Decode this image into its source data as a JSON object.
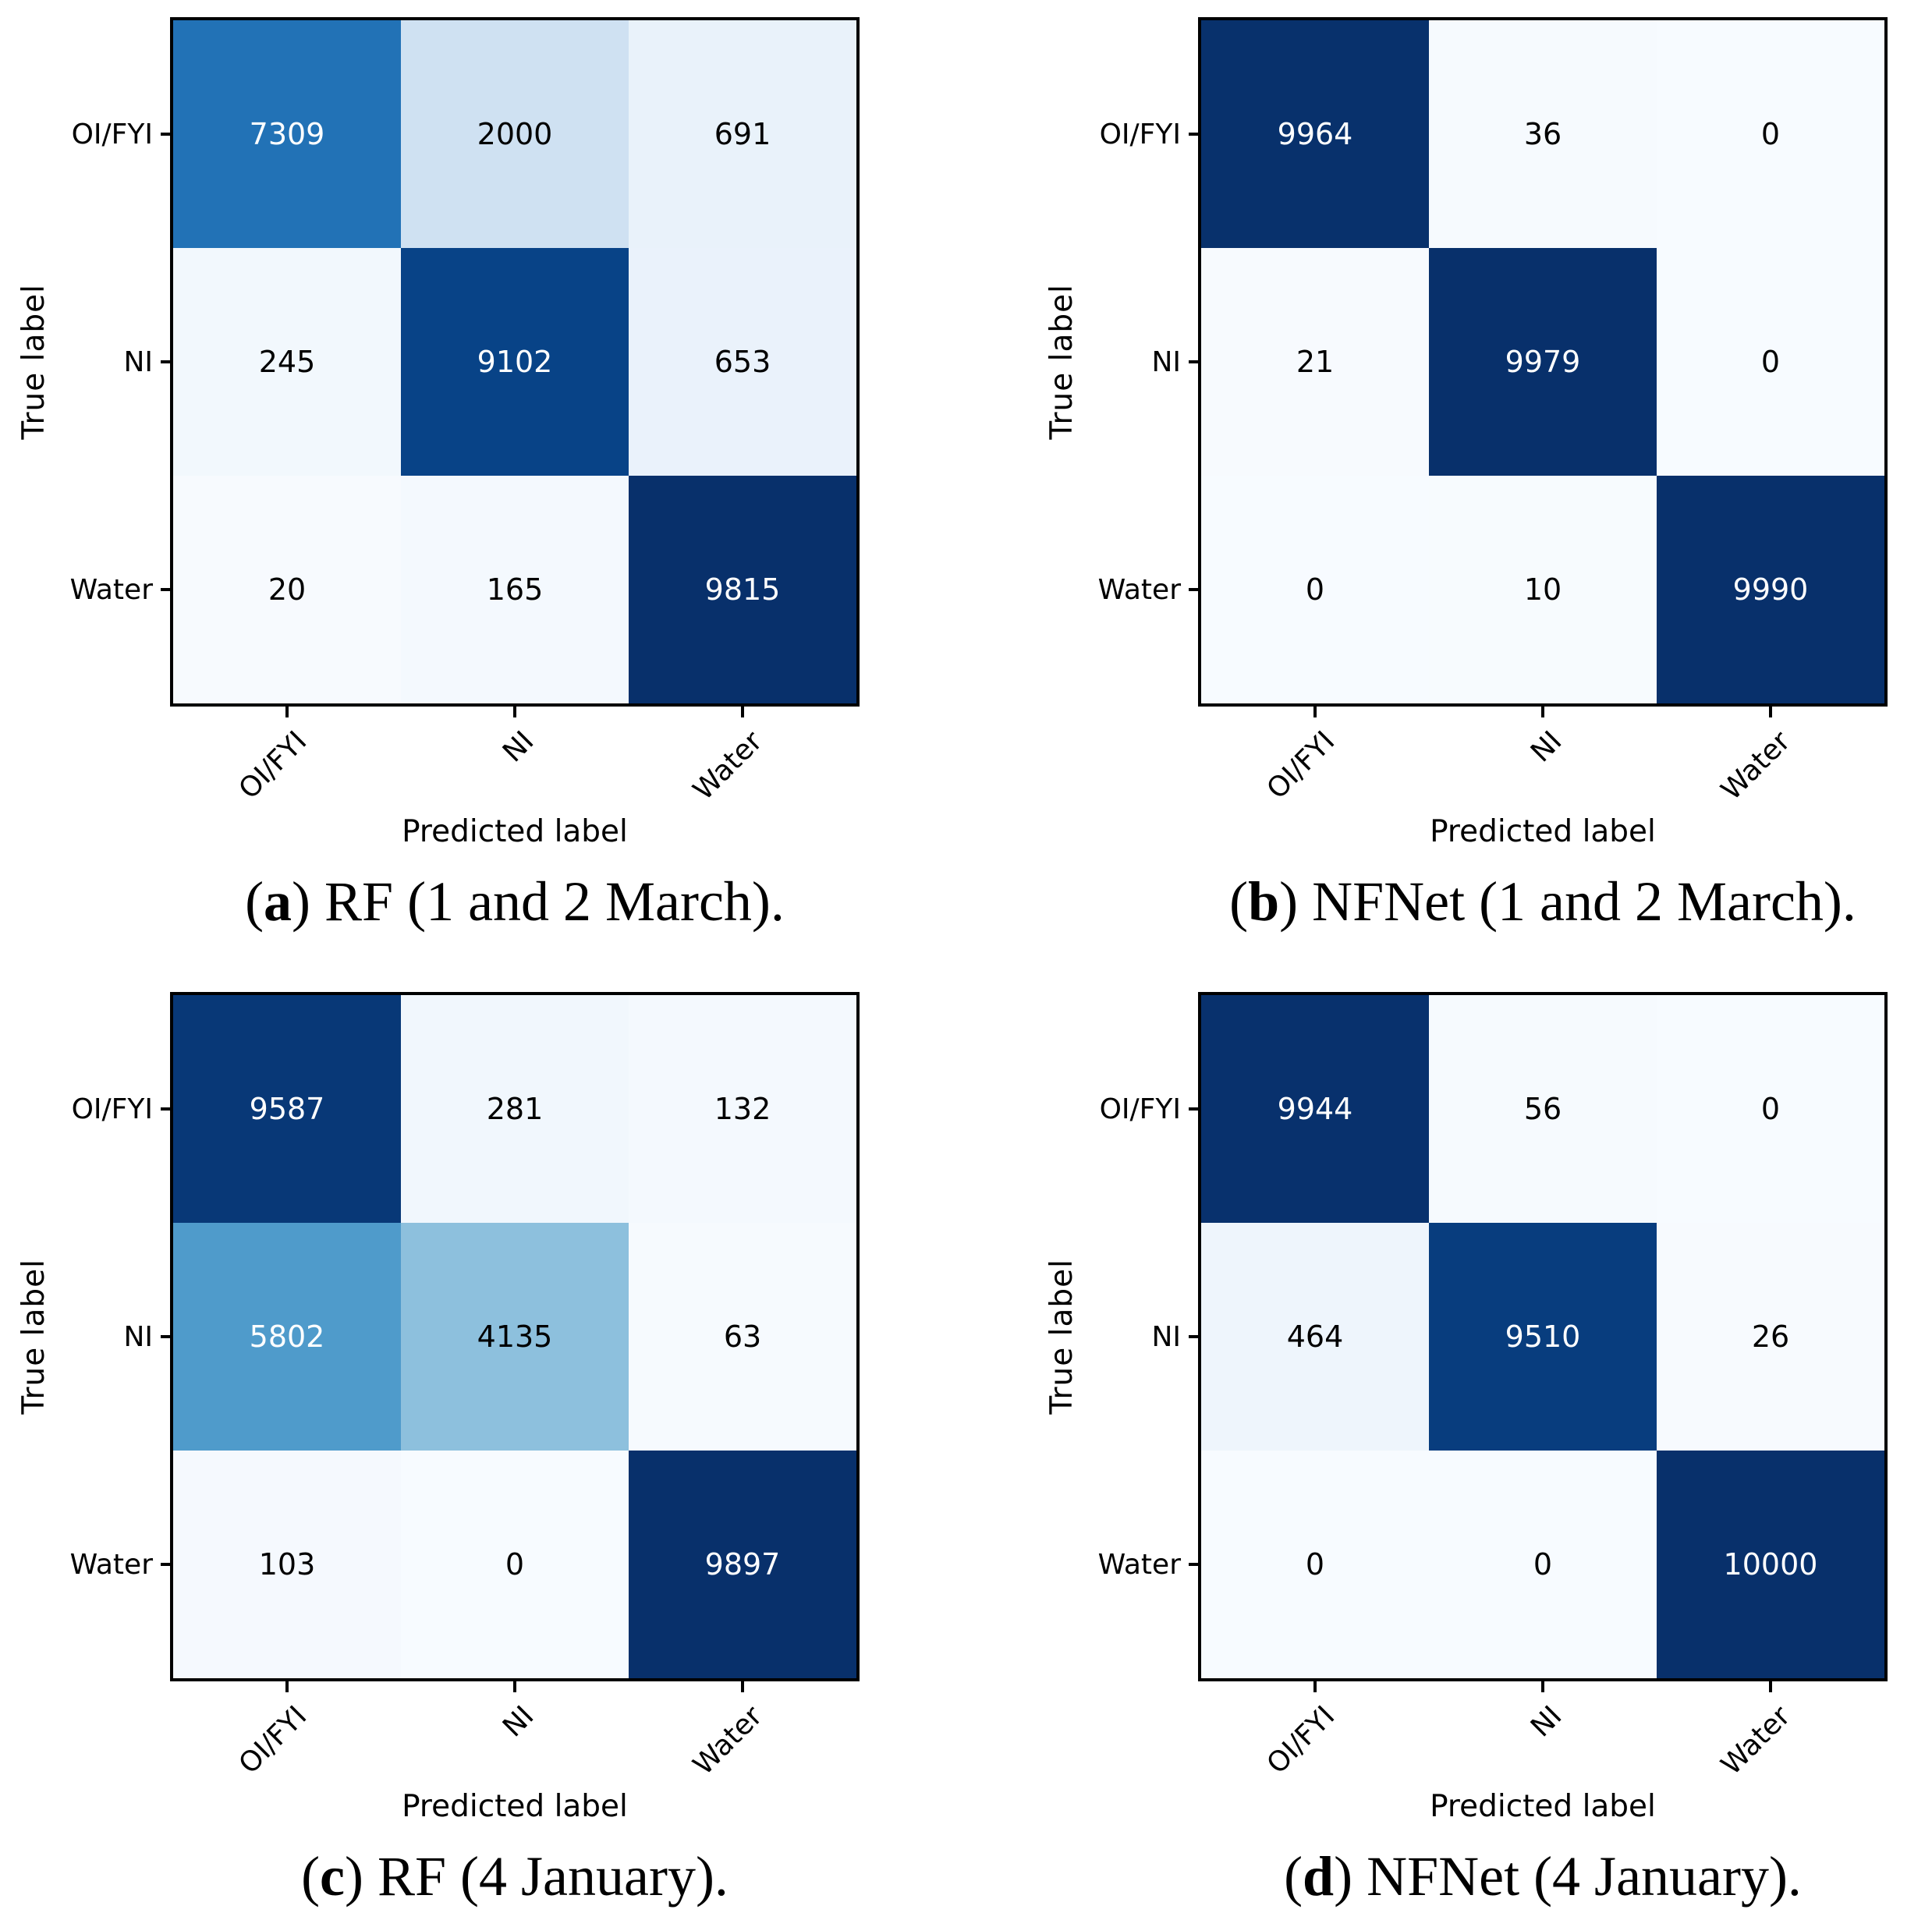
{
  "figure": {
    "ylabel": "True label",
    "xlabel": "Predicted label",
    "classes": [
      "OI/FYI",
      "NI",
      "Water"
    ],
    "colormap": "Blues",
    "background_color": "#ffffff",
    "dark_color": "#08306b",
    "light_color": "#f7fbff"
  },
  "chart_data": [
    {
      "type": "heatmap",
      "title": "RF (1 and 2 March)",
      "caption": {
        "prefix": "(",
        "letter": "a",
        "suffix": ") RF (1 and 2 March)."
      },
      "xlabel": "Predicted label",
      "ylabel": "True label",
      "x_categories": [
        "OI/FYI",
        "NI",
        "Water"
      ],
      "y_categories": [
        "OI/FYI",
        "NI",
        "Water"
      ],
      "values": [
        [
          7309,
          2000,
          691
        ],
        [
          245,
          9102,
          653
        ],
        [
          20,
          165,
          9815
        ]
      ],
      "vmin": 0,
      "vmax": 9815,
      "cell_colors": [
        [
          "#2272b6",
          "#cfe1f2",
          "#e9f2fa"
        ],
        [
          "#f2f8fd",
          "#084387",
          "#eaf2fb"
        ],
        [
          "#f7fafe",
          "#f4f9fe",
          "#08306b"
        ]
      ],
      "text_colors": [
        [
          "#ffffff",
          "#000000",
          "#000000"
        ],
        [
          "#000000",
          "#ffffff",
          "#000000"
        ],
        [
          "#000000",
          "#000000",
          "#ffffff"
        ]
      ]
    },
    {
      "type": "heatmap",
      "title": "NFNet (1 and 2 March)",
      "caption": {
        "prefix": "(",
        "letter": "b",
        "suffix": ") NFNet (1 and 2 March)."
      },
      "xlabel": "Predicted label",
      "ylabel": "True label",
      "x_categories": [
        "OI/FYI",
        "NI",
        "Water"
      ],
      "y_categories": [
        "OI/FYI",
        "NI",
        "Water"
      ],
      "values": [
        [
          9964,
          36,
          0
        ],
        [
          21,
          9979,
          0
        ],
        [
          0,
          10,
          9990
        ]
      ],
      "vmin": 0,
      "vmax": 9990,
      "cell_colors": [
        [
          "#08316c",
          "#f6fafe",
          "#f7fbff"
        ],
        [
          "#f7fafe",
          "#08306b",
          "#f7fbff"
        ],
        [
          "#f7fbff",
          "#f7fbfe",
          "#08306b"
        ]
      ],
      "text_colors": [
        [
          "#ffffff",
          "#000000",
          "#000000"
        ],
        [
          "#000000",
          "#ffffff",
          "#000000"
        ],
        [
          "#000000",
          "#000000",
          "#ffffff"
        ]
      ]
    },
    {
      "type": "heatmap",
      "title": "RF (4 January)",
      "caption": {
        "prefix": "(",
        "letter": "c",
        "suffix": ") RF (4 January)."
      },
      "xlabel": "Predicted label",
      "ylabel": "True label",
      "x_categories": [
        "OI/FYI",
        "NI",
        "Water"
      ],
      "y_categories": [
        "OI/FYI",
        "NI",
        "Water"
      ],
      "values": [
        [
          9587,
          281,
          132
        ],
        [
          5802,
          4135,
          63
        ],
        [
          103,
          0,
          9897
        ]
      ],
      "vmin": 0,
      "vmax": 9897,
      "cell_colors": [
        [
          "#083877",
          "#f1f7fd",
          "#f4f9fe"
        ],
        [
          "#4f9bcb",
          "#8dc0dd",
          "#f6fafe"
        ],
        [
          "#f5f9fe",
          "#f7fbff",
          "#08306b"
        ]
      ],
      "text_colors": [
        [
          "#ffffff",
          "#000000",
          "#000000"
        ],
        [
          "#ffffff",
          "#000000",
          "#000000"
        ],
        [
          "#000000",
          "#000000",
          "#ffffff"
        ]
      ]
    },
    {
      "type": "heatmap",
      "title": "NFNet (4 January)",
      "caption": {
        "prefix": "(",
        "letter": "d",
        "suffix": ") NFNet (4 January)."
      },
      "xlabel": "Predicted label",
      "ylabel": "True label",
      "x_categories": [
        "OI/FYI",
        "NI",
        "Water"
      ],
      "y_categories": [
        "OI/FYI",
        "NI",
        "Water"
      ],
      "values": [
        [
          9944,
          56,
          0
        ],
        [
          464,
          9510,
          26
        ],
        [
          0,
          0,
          10000
        ]
      ],
      "vmin": 0,
      "vmax": 10000,
      "cell_colors": [
        [
          "#08316d",
          "#f6fafe",
          "#f7fbff"
        ],
        [
          "#eef5fc",
          "#083d7e",
          "#f7fafe"
        ],
        [
          "#f7fbff",
          "#f7fbff",
          "#08306b"
        ]
      ],
      "text_colors": [
        [
          "#ffffff",
          "#000000",
          "#000000"
        ],
        [
          "#000000",
          "#ffffff",
          "#000000"
        ],
        [
          "#000000",
          "#000000",
          "#ffffff"
        ]
      ]
    }
  ]
}
